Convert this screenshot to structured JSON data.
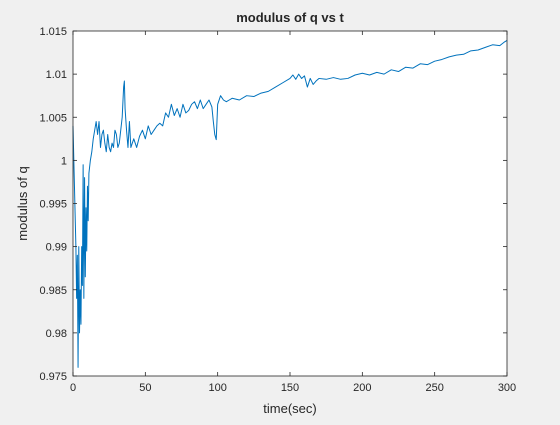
{
  "chart_data": {
    "type": "line",
    "title": "modulus of q vs t",
    "xlabel": "time(sec)",
    "ylabel": "modulus of q",
    "xlim": [
      0,
      300
    ],
    "ylim": [
      0.975,
      1.015
    ],
    "xticks": [
      0,
      50,
      100,
      150,
      200,
      250,
      300
    ],
    "xtick_labels": [
      "0",
      "50",
      "100",
      "150",
      "200",
      "250",
      "300"
    ],
    "yticks": [
      0.975,
      0.98,
      0.985,
      0.99,
      0.995,
      1,
      1.005,
      1.01,
      1.015
    ],
    "ytick_labels": [
      "0.975",
      "0.98",
      "0.985",
      "0.99",
      "0.995",
      "1",
      "1.005",
      "1.01",
      "1.015"
    ],
    "grid": false,
    "legend": "none",
    "series": [
      {
        "color": "#0072bd",
        "x": [
          0,
          1,
          2,
          2.5,
          3,
          3.5,
          4,
          4.5,
          5,
          5.5,
          6,
          6.5,
          7,
          7.5,
          8,
          8.5,
          9,
          9.5,
          10,
          10.5,
          11,
          12,
          13,
          14,
          15,
          16,
          17,
          18,
          19,
          20,
          21,
          22,
          23,
          24,
          25,
          26,
          27,
          28,
          29,
          30,
          31,
          32,
          33,
          34,
          35,
          35.5,
          36,
          37,
          38,
          39,
          40,
          42,
          44,
          46,
          48,
          50,
          52,
          54,
          56,
          58,
          60,
          62,
          64,
          66,
          68,
          70,
          72,
          74,
          76,
          78,
          80,
          82,
          84,
          86,
          88,
          90,
          92,
          94,
          96,
          97,
          98,
          99,
          100,
          102,
          104,
          106,
          108,
          110,
          115,
          120,
          125,
          130,
          135,
          140,
          145,
          150,
          152,
          154,
          156,
          158,
          160,
          162,
          164,
          166,
          168,
          170,
          175,
          180,
          185,
          190,
          195,
          200,
          205,
          210,
          215,
          220,
          225,
          230,
          235,
          240,
          245,
          250,
          255,
          260,
          265,
          270,
          275,
          280,
          285,
          290,
          295,
          298,
          300
        ],
        "y": [
          1.004,
          0.997,
          0.99,
          0.984,
          0.989,
          0.976,
          0.99,
          0.98,
          0.985,
          0.981,
          0.99,
          0.9855,
          0.9995,
          0.984,
          0.998,
          0.9865,
          0.9945,
          0.9895,
          0.997,
          0.993,
          0.9985,
          1.0,
          1.001,
          1.0025,
          1.0035,
          1.0045,
          1.003,
          1.0045,
          1.0015,
          1.003,
          1.0035,
          1.002,
          1.001,
          1.003,
          1.0015,
          1.001,
          1.002,
          1.0015,
          1.0035,
          1.003,
          1.0015,
          1.002,
          1.0035,
          1.005,
          1.0085,
          1.0092,
          1.006,
          1.0035,
          1.0015,
          1.0045,
          1.0015,
          1.0025,
          1.0015,
          1.0028,
          1.0035,
          1.0025,
          1.004,
          1.003,
          1.0035,
          1.004,
          1.0043,
          1.004,
          1.0055,
          1.005,
          1.0065,
          1.0052,
          1.006,
          1.005,
          1.0065,
          1.0055,
          1.0058,
          1.0065,
          1.0068,
          1.006,
          1.007,
          1.006,
          1.0065,
          1.007,
          1.0062,
          1.0045,
          1.003,
          1.0024,
          1.0065,
          1.0075,
          1.007,
          1.0068,
          1.007,
          1.0072,
          1.007,
          1.0075,
          1.0074,
          1.0078,
          1.008,
          1.0085,
          1.009,
          1.0095,
          1.0099,
          1.0094,
          1.01,
          1.0095,
          1.0098,
          1.0085,
          1.0095,
          1.0088,
          1.0092,
          1.0095,
          1.0094,
          1.0096,
          1.0094,
          1.0095,
          1.0099,
          1.0101,
          1.0099,
          1.0102,
          1.01,
          1.0105,
          1.0103,
          1.0108,
          1.0107,
          1.0112,
          1.0111,
          1.0115,
          1.0117,
          1.012,
          1.0122,
          1.0123,
          1.0127,
          1.0128,
          1.0131,
          1.0134,
          1.0133,
          1.0137,
          1.0139
        ]
      }
    ]
  }
}
